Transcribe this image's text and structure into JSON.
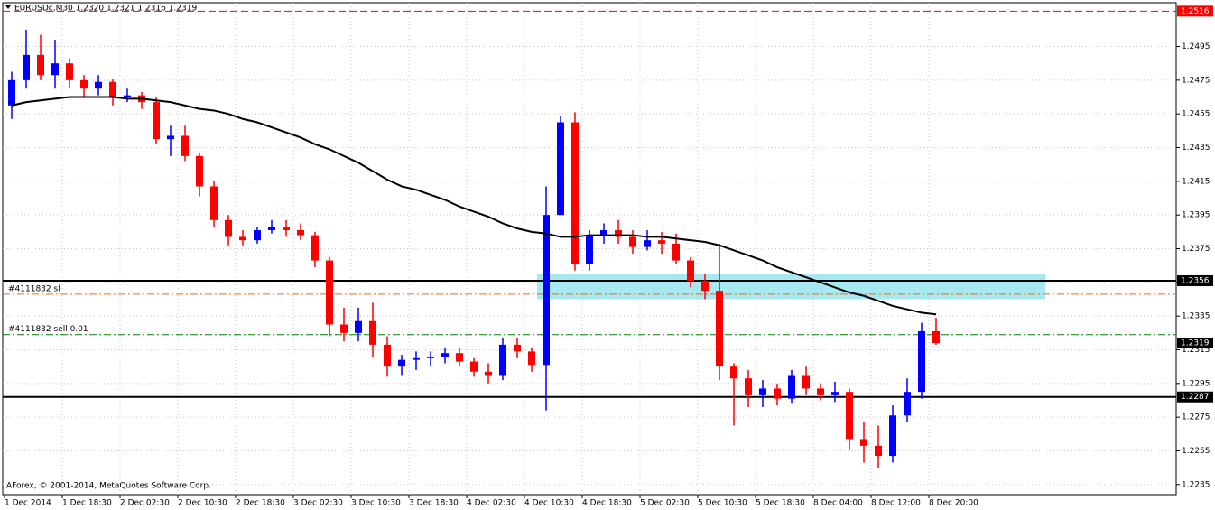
{
  "chart_data": {
    "type": "candlestick",
    "title": "EURUSDc,M30  1.2320 1.2321 1.2316 1.2319",
    "footer": "AForex, © 2001-2014, MetaQuotes Software Corp.",
    "categories": [
      "1 Dec 2014",
      null,
      null,
      null,
      "1 Dec 18:30",
      null,
      null,
      null,
      "2 Dec 02:30",
      null,
      null,
      null,
      "2 Dec 10:30",
      null,
      null,
      null,
      "2 Dec 18:30",
      null,
      null,
      null,
      "3 Dec 02:30",
      null,
      null,
      null,
      "3 Dec 10:30",
      null,
      null,
      null,
      "3 Dec 18:30",
      null,
      null,
      null,
      "4 Dec 02:30",
      null,
      null,
      null,
      "4 Dec 10:30",
      null,
      null,
      null,
      "4 Dec 18:30",
      null,
      null,
      null,
      "5 Dec 02:30",
      null,
      null,
      null,
      "5 Dec 10:30",
      null,
      null,
      null,
      "5 Dec 18:30",
      null,
      null,
      null,
      "8 Dec 04:00",
      null,
      null,
      null,
      "8 Dec 12:00",
      null,
      null,
      null,
      "8 Dec 20:00"
    ],
    "open": [
      1.246,
      1.2475,
      1.249,
      1.2478,
      1.2485,
      1.2475,
      1.247,
      1.2474,
      1.2465,
      1.2466,
      1.2462,
      1.244,
      1.2442,
      1.243,
      1.2412,
      1.2392,
      1.2382,
      1.238,
      1.2386,
      1.2388,
      1.2386,
      1.2383,
      1.2368,
      1.233,
      1.2325,
      1.2332,
      1.2318,
      1.2305,
      1.2309,
      1.231,
      1.2311,
      1.2313,
      1.2308,
      1.2302,
      1.23,
      1.2318,
      1.2314,
      1.2306,
      1.2395,
      1.245,
      1.2366,
      1.2383,
      1.2386,
      1.2382,
      1.2376,
      1.238,
      1.2378,
      1.2368,
      1.2356,
      1.235,
      1.2305,
      1.2298,
      1.2288,
      1.2292,
      1.2286,
      1.23,
      1.2292,
      1.2288,
      1.229,
      1.2262,
      1.2258,
      1.2252,
      1.2276,
      1.229,
      1.2326
    ],
    "high": [
      1.248,
      1.2505,
      1.2502,
      1.2499,
      1.2488,
      1.2478,
      1.2478,
      1.2476,
      1.247,
      1.2468,
      1.2465,
      1.2448,
      1.2448,
      1.2432,
      1.2415,
      1.2395,
      1.2386,
      1.2388,
      1.2392,
      1.2392,
      1.239,
      1.2385,
      1.237,
      1.234,
      1.234,
      1.2343,
      1.2323,
      1.2312,
      1.2314,
      1.2314,
      1.2316,
      1.2316,
      1.231,
      1.2307,
      1.2322,
      1.2322,
      1.2316,
      1.2412,
      1.2454,
      1.2456,
      1.2386,
      1.239,
      1.2392,
      1.2386,
      1.2386,
      1.2385,
      1.2384,
      1.237,
      1.236,
      1.2378,
      1.2307,
      1.2303,
      1.2297,
      1.2295,
      1.2303,
      1.2305,
      1.2295,
      1.2296,
      1.2292,
      1.2272,
      1.227,
      1.2282,
      1.2298,
      1.2331,
      1.2334
    ],
    "low": [
      1.2452,
      1.247,
      1.2475,
      1.247,
      1.247,
      1.2465,
      1.2466,
      1.246,
      1.2462,
      1.2458,
      1.2437,
      1.243,
      1.2427,
      1.2406,
      1.2388,
      1.2377,
      1.2377,
      1.2378,
      1.2384,
      1.2382,
      1.238,
      1.2364,
      1.2323,
      1.232,
      1.232,
      1.2311,
      1.2299,
      1.23,
      1.2303,
      1.2305,
      1.2307,
      1.2305,
      1.2299,
      1.2295,
      1.2297,
      1.231,
      1.2302,
      1.2279,
      1.2395,
      1.2362,
      1.2362,
      1.2378,
      1.2378,
      1.2372,
      1.2374,
      1.2372,
      1.2366,
      1.2352,
      1.2345,
      1.2297,
      1.227,
      1.2281,
      1.2281,
      1.2282,
      1.2283,
      1.2288,
      1.2285,
      1.2284,
      1.2256,
      1.2248,
      1.2245,
      1.2248,
      1.2272,
      1.2286,
      1.2318
    ],
    "close": [
      1.2475,
      1.249,
      1.2478,
      1.2485,
      1.2475,
      1.247,
      1.2474,
      1.2465,
      1.2466,
      1.2462,
      1.244,
      1.2442,
      1.243,
      1.2412,
      1.2392,
      1.2382,
      1.238,
      1.2386,
      1.2388,
      1.2386,
      1.2383,
      1.2368,
      1.233,
      1.2325,
      1.2332,
      1.2318,
      1.2305,
      1.2309,
      1.231,
      1.2311,
      1.2313,
      1.2308,
      1.2302,
      1.23,
      1.2318,
      1.2314,
      1.2306,
      1.2395,
      1.245,
      1.2366,
      1.2383,
      1.2386,
      1.2382,
      1.2376,
      1.238,
      1.2378,
      1.2368,
      1.2356,
      1.235,
      1.2305,
      1.2298,
      1.2288,
      1.2292,
      1.2286,
      1.23,
      1.2292,
      1.2288,
      1.229,
      1.2262,
      1.2258,
      1.2252,
      1.2276,
      1.229,
      1.2326,
      1.2319
    ],
    "up_color": "#0000ff",
    "down_color": "#ff0000",
    "ma": {
      "color": "#000000",
      "values": [
        1.246,
        1.2462,
        1.2463,
        1.2464,
        1.2465,
        1.2465,
        1.2465,
        1.2465,
        1.2464,
        1.2464,
        1.2463,
        1.2462,
        1.246,
        1.2458,
        1.2457,
        1.2455,
        1.2452,
        1.245,
        1.2447,
        1.2444,
        1.2441,
        1.2437,
        1.2434,
        1.243,
        1.2426,
        1.2421,
        1.2416,
        1.2412,
        1.241,
        1.2407,
        1.2404,
        1.24,
        1.2397,
        1.2394,
        1.239,
        1.2387,
        1.2385,
        1.2384,
        1.2382,
        1.2382,
        1.2383,
        1.2383,
        1.2383,
        1.2383,
        1.2382,
        1.2382,
        1.2381,
        1.238,
        1.2379,
        1.2377,
        1.2374,
        1.2371,
        1.2368,
        1.2364,
        1.2361,
        1.2358,
        1.2355,
        1.2352,
        1.2349,
        1.2347,
        1.2344,
        1.2341,
        1.2339,
        1.2337,
        1.2336
      ]
    },
    "zone": {
      "low": 1.2345,
      "high": 1.236,
      "color": "#a8e8f0"
    },
    "levels": [
      {
        "value": 1.2516,
        "color": "#ff0000",
        "style": "dash",
        "tag": true
      },
      {
        "value": 1.2356,
        "color": "#000000",
        "style": "solid",
        "tag": true
      },
      {
        "value": 1.2287,
        "color": "#000000",
        "style": "solid",
        "tag": true
      },
      {
        "value": 1.2348,
        "color": "#ff6600",
        "style": "dashdot",
        "tag": false,
        "label": "#4111832 sl"
      },
      {
        "value": 1.2324,
        "color": "#008000",
        "style": "dashdot",
        "tag": false,
        "label": "#4111832 sell 0.01"
      }
    ],
    "bid": 1.2319,
    "ylim": [
      1.2229,
      1.2521
    ],
    "yticks": [
      1.2495,
      1.2475,
      1.2455,
      1.2435,
      1.2415,
      1.2395,
      1.2375,
      1.2355,
      1.2335,
      1.2315,
      1.2295,
      1.2275,
      1.2255,
      1.2235
    ],
    "grid": true
  }
}
